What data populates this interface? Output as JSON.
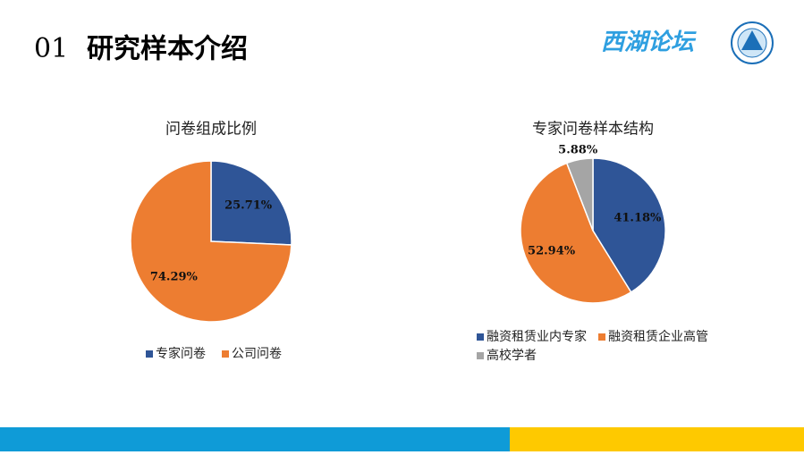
{
  "header": {
    "number": "01",
    "title": "研究样本介绍",
    "brand": "西湖论坛"
  },
  "chart_data": [
    {
      "type": "pie",
      "title": "问卷组成比例",
      "categories": [
        "专家问卷",
        "公司问卷"
      ],
      "values": [
        25.71,
        74.29
      ],
      "value_labels": [
        "25.71%",
        "74.29%"
      ],
      "colors": [
        "#2f5597",
        "#ed7d31"
      ],
      "legend": "bottom"
    },
    {
      "type": "pie",
      "title": "专家问卷样本结构",
      "categories": [
        "融资租赁业内专家",
        "融资租赁企业高管",
        "高校学者"
      ],
      "values": [
        41.18,
        52.94,
        5.88
      ],
      "value_labels": [
        "41.18%",
        "52.94%",
        "5.88%"
      ],
      "colors": [
        "#2f5597",
        "#ed7d31",
        "#a5a5a5"
      ],
      "legend": "bottom"
    }
  ]
}
